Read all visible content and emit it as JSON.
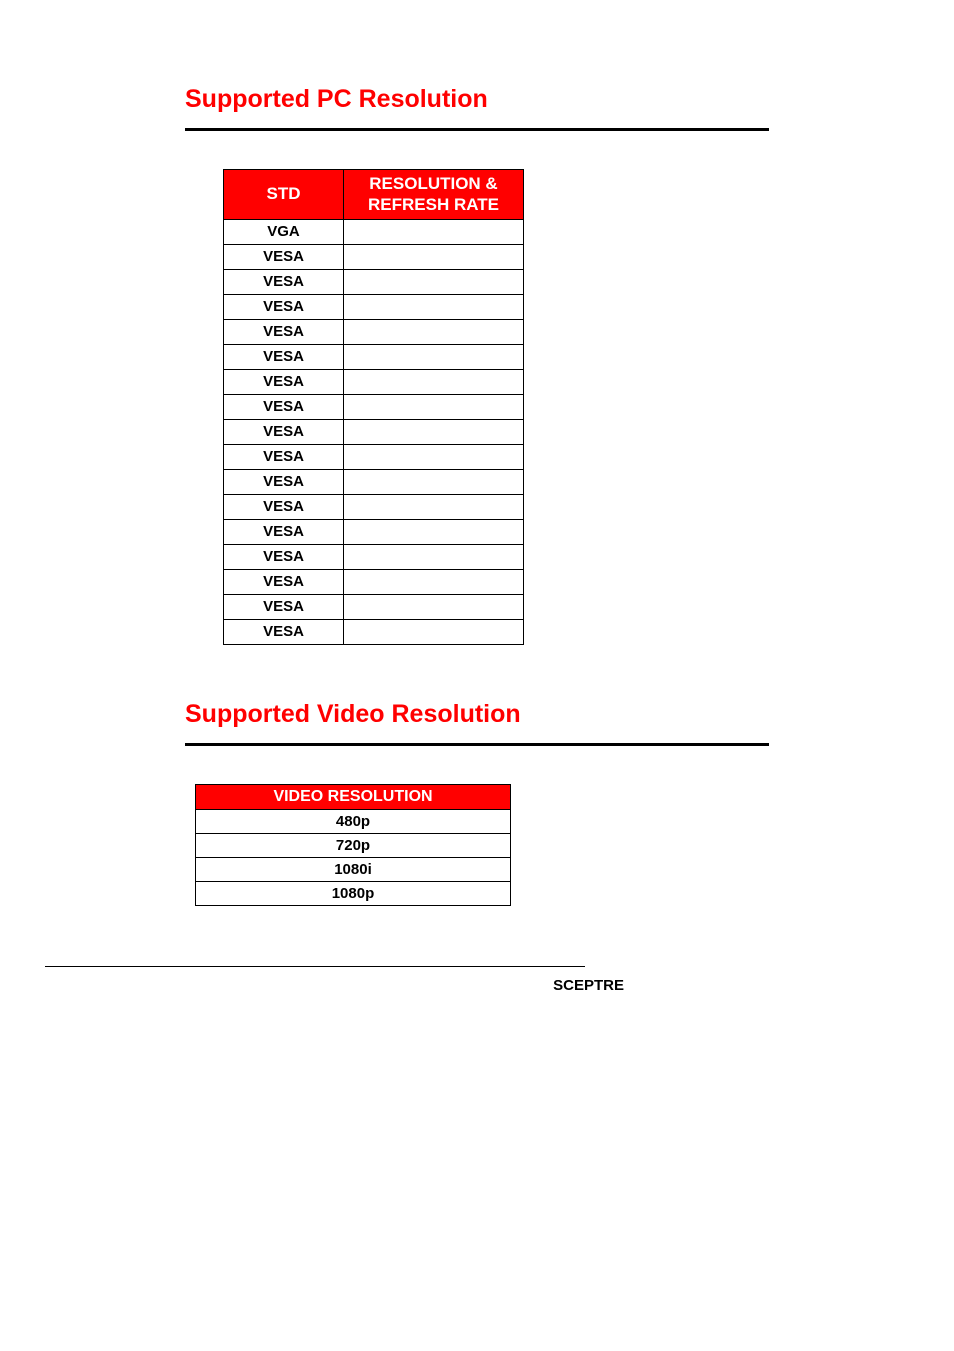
{
  "section1": {
    "heading": "Supported PC Resolution",
    "table": {
      "headers": {
        "std": "STD",
        "res": "RESOLUTION & REFRESH RATE"
      },
      "rows": [
        {
          "std": "VGA",
          "res": ""
        },
        {
          "std": "VESA",
          "res": ""
        },
        {
          "std": "VESA",
          "res": ""
        },
        {
          "std": "VESA",
          "res": ""
        },
        {
          "std": "VESA",
          "res": ""
        },
        {
          "std": "VESA",
          "res": ""
        },
        {
          "std": "VESA",
          "res": ""
        },
        {
          "std": "VESA",
          "res": ""
        },
        {
          "std": "VESA",
          "res": ""
        },
        {
          "std": "VESA",
          "res": ""
        },
        {
          "std": "VESA",
          "res": ""
        },
        {
          "std": "VESA",
          "res": ""
        },
        {
          "std": "VESA",
          "res": ""
        },
        {
          "std": "VESA",
          "res": ""
        },
        {
          "std": "VESA",
          "res": ""
        },
        {
          "std": "VESA",
          "res": ""
        },
        {
          "std": "VESA",
          "res": ""
        }
      ],
      "header_bg": "#ff0000",
      "header_color": "#ffffff",
      "border_color": "#000000",
      "cell_font_weight": "bold"
    }
  },
  "section2": {
    "heading": "Supported Video Resolution",
    "table": {
      "header": "VIDEO RESOLUTION",
      "rows": [
        "480p",
        "720p",
        "1080i",
        "1080p"
      ],
      "header_bg": "#ff0000",
      "header_color": "#ffffff",
      "border_color": "#000000"
    }
  },
  "footer": {
    "brand": "SCEPTRE"
  },
  "colors": {
    "heading_color": "#ff0000",
    "hr_color": "#000000",
    "background": "#ffffff",
    "text": "#000000"
  }
}
